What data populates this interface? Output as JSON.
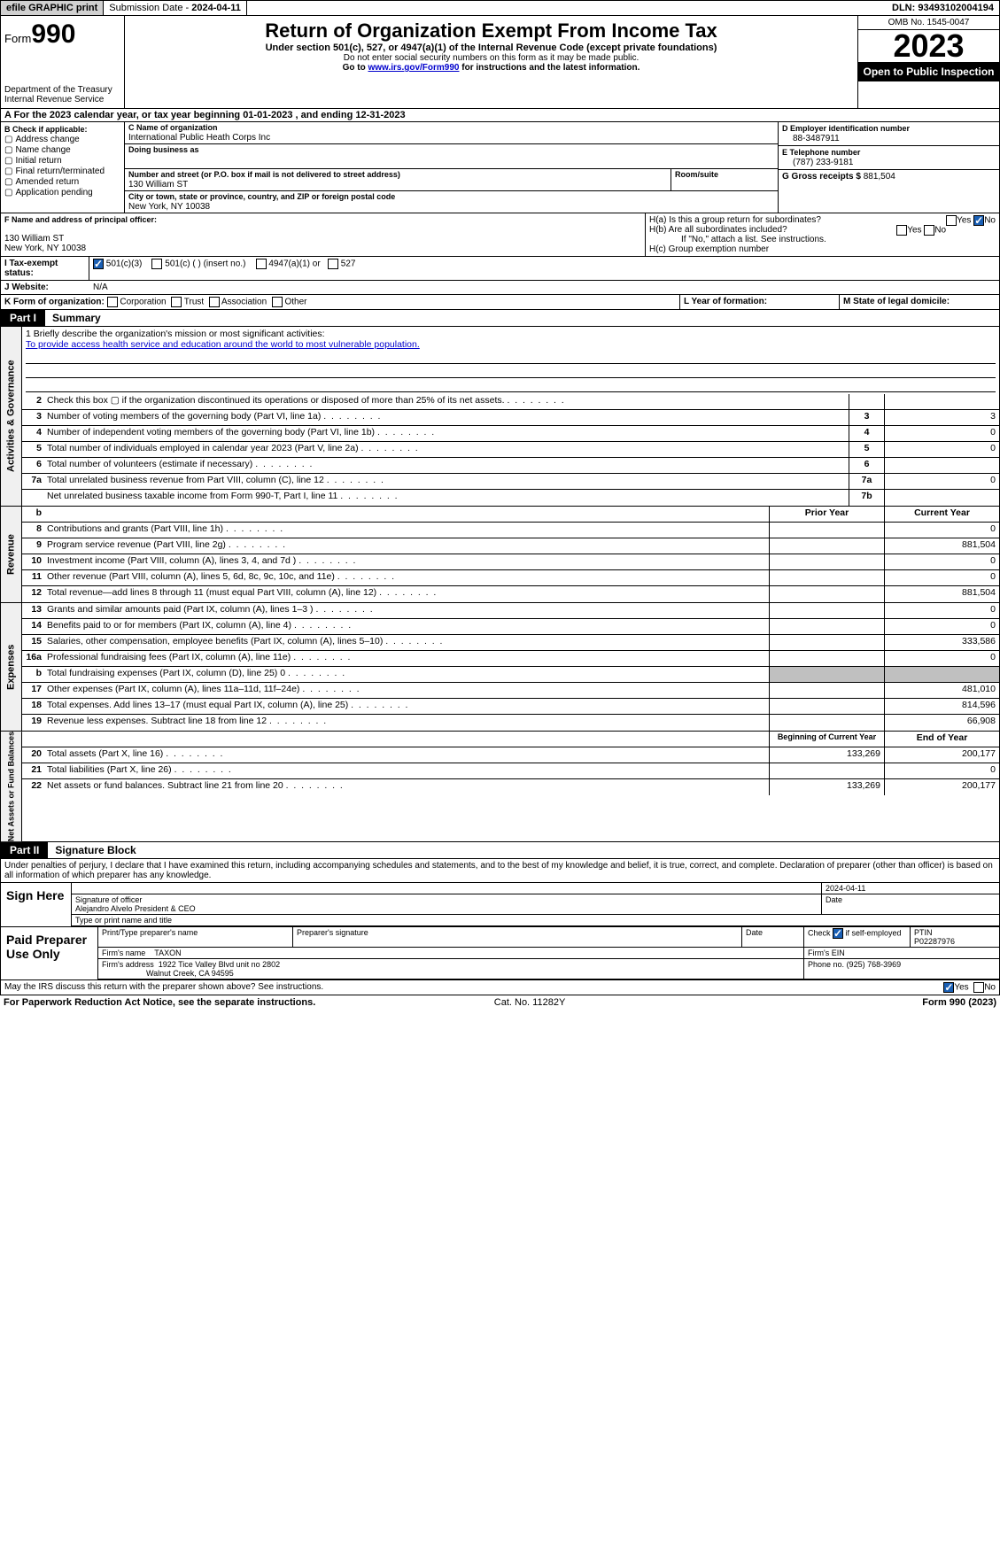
{
  "topbar": {
    "efile": "efile GRAPHIC print",
    "sub_label": "Submission Date - ",
    "sub_date": "2024-04-11",
    "dln_label": "DLN: ",
    "dln": "93493102004194"
  },
  "header": {
    "form_prefix": "Form",
    "form_no": "990",
    "dept": "Department of the Treasury",
    "irs": "Internal Revenue Service",
    "title": "Return of Organization Exempt From Income Tax",
    "sub1": "Under section 501(c), 527, or 4947(a)(1) of the Internal Revenue Code (except private foundations)",
    "sub2": "Do not enter social security numbers on this form as it may be made public.",
    "sub3_pre": "Go to ",
    "sub3_link": "www.irs.gov/Form990",
    "sub3_post": " for instructions and the latest information.",
    "omb": "OMB No. 1545-0047",
    "year": "2023",
    "open": "Open to Public Inspection"
  },
  "sectionA": {
    "text": "A For the 2023 calendar year, or tax year beginning 01-01-2023    , and ending 12-31-2023"
  },
  "colB": {
    "label": "B Check if applicable:",
    "items": [
      "Address change",
      "Name change",
      "Initial return",
      "Final return/terminated",
      "Amended return",
      "Application pending"
    ]
  },
  "colC": {
    "name_label": "C Name of organization",
    "name": "International Public Heath Corps Inc",
    "dba_label": "Doing business as",
    "addr_label": "Number and street (or P.O. box if mail is not delivered to street address)",
    "room_label": "Room/suite",
    "addr": "130 William ST",
    "city_label": "City or town, state or province, country, and ZIP or foreign postal code",
    "city": "New York, NY  10038"
  },
  "colD": {
    "ein_label": "D Employer identification number",
    "ein": "88-3487911",
    "tel_label": "E Telephone number",
    "tel": "(787) 233-9181",
    "gross_label": "G Gross receipts $ ",
    "gross": "881,504"
  },
  "rowF": {
    "label": "F  Name and address of principal officer:",
    "addr1": "130 William ST",
    "addr2": "New York, NY  10038"
  },
  "rowH": {
    "ha_label": "H(a)  Is this a group return for subordinates?",
    "hb_label": "H(b)  Are all subordinates included?",
    "hb_note": "If \"No,\" attach a list. See instructions.",
    "hc_label": "H(c)  Group exemption number",
    "yes": "Yes",
    "no": "No"
  },
  "rowI": {
    "label": "I   Tax-exempt status:",
    "opts": [
      "501(c)(3)",
      "501(c) (  ) (insert no.)",
      "4947(a)(1) or",
      "527"
    ]
  },
  "rowJ": {
    "label": "J   Website:",
    "val": "N/A"
  },
  "rowK": {
    "label": "K Form of organization:",
    "opts": [
      "Corporation",
      "Trust",
      "Association",
      "Other"
    ],
    "l_label": "L Year of formation:",
    "m_label": "M State of legal domicile:"
  },
  "part1": {
    "tag": "Part I",
    "title": "Summary"
  },
  "mission": {
    "q": "1  Briefly describe the organization's mission or most significant activities:",
    "text": "To provide access health service and education around the world to most vulnerable population."
  },
  "gov_label": "Activities & Governance",
  "gov_rows": [
    {
      "n": "2",
      "d": "Check this box ▢  if the organization discontinued its operations or disposed of more than 25% of its net assets.",
      "c1": "",
      "c2": ""
    },
    {
      "n": "3",
      "d": "Number of voting members of the governing body (Part VI, line 1a)",
      "c1": "3",
      "c2": "3"
    },
    {
      "n": "4",
      "d": "Number of independent voting members of the governing body (Part VI, line 1b)",
      "c1": "4",
      "c2": "0"
    },
    {
      "n": "5",
      "d": "Total number of individuals employed in calendar year 2023 (Part V, line 2a)",
      "c1": "5",
      "c2": "0"
    },
    {
      "n": "6",
      "d": "Total number of volunteers (estimate if necessary)",
      "c1": "6",
      "c2": ""
    },
    {
      "n": "7a",
      "d": "Total unrelated business revenue from Part VIII, column (C), line 12",
      "c1": "7a",
      "c2": "0"
    },
    {
      "n": "",
      "d": "Net unrelated business taxable income from Form 990-T, Part I, line 11",
      "c1": "7b",
      "c2": ""
    }
  ],
  "rev_label": "Revenue",
  "rev_head": {
    "c2": "Prior Year",
    "c3": "Current Year"
  },
  "rev_rows": [
    {
      "n": "8",
      "d": "Contributions and grants (Part VIII, line 1h)",
      "c2": "",
      "c3": "0"
    },
    {
      "n": "9",
      "d": "Program service revenue (Part VIII, line 2g)",
      "c2": "",
      "c3": "881,504"
    },
    {
      "n": "10",
      "d": "Investment income (Part VIII, column (A), lines 3, 4, and 7d )",
      "c2": "",
      "c3": "0"
    },
    {
      "n": "11",
      "d": "Other revenue (Part VIII, column (A), lines 5, 6d, 8c, 9c, 10c, and 11e)",
      "c2": "",
      "c3": "0"
    },
    {
      "n": "12",
      "d": "Total revenue—add lines 8 through 11 (must equal Part VIII, column (A), line 12)",
      "c2": "",
      "c3": "881,504"
    }
  ],
  "exp_label": "Expenses",
  "exp_rows": [
    {
      "n": "13",
      "d": "Grants and similar amounts paid (Part IX, column (A), lines 1–3 )",
      "c2": "",
      "c3": "0"
    },
    {
      "n": "14",
      "d": "Benefits paid to or for members (Part IX, column (A), line 4)",
      "c2": "",
      "c3": "0"
    },
    {
      "n": "15",
      "d": "Salaries, other compensation, employee benefits (Part IX, column (A), lines 5–10)",
      "c2": "",
      "c3": "333,586"
    },
    {
      "n": "16a",
      "d": "Professional fundraising fees (Part IX, column (A), line 11e)",
      "c2": "",
      "c3": "0"
    },
    {
      "n": "b",
      "d": "Total fundraising expenses (Part IX, column (D), line 25) 0",
      "c2": "shaded",
      "c3": "shaded"
    },
    {
      "n": "17",
      "d": "Other expenses (Part IX, column (A), lines 11a–11d, 11f–24e)",
      "c2": "",
      "c3": "481,010"
    },
    {
      "n": "18",
      "d": "Total expenses. Add lines 13–17 (must equal Part IX, column (A), line 25)",
      "c2": "",
      "c3": "814,596"
    },
    {
      "n": "19",
      "d": "Revenue less expenses. Subtract line 18 from line 12",
      "c2": "",
      "c3": "66,908"
    }
  ],
  "na_label": "Net Assets or Fund Balances",
  "na_head": {
    "c2": "Beginning of Current Year",
    "c3": "End of Year"
  },
  "na_rows": [
    {
      "n": "20",
      "d": "Total assets (Part X, line 16)",
      "c2": "133,269",
      "c3": "200,177"
    },
    {
      "n": "21",
      "d": "Total liabilities (Part X, line 26)",
      "c2": "",
      "c3": "0"
    },
    {
      "n": "22",
      "d": "Net assets or fund balances. Subtract line 21 from line 20",
      "c2": "133,269",
      "c3": "200,177"
    }
  ],
  "part2": {
    "tag": "Part II",
    "title": "Signature Block"
  },
  "sig": {
    "decl": "Under penalties of perjury, I declare that I have examined this return, including accompanying schedules and statements, and to the best of my knowledge and belief, it is true, correct, and complete. Declaration of preparer (other than officer) is based on all information of which preparer has any knowledge.",
    "sign_here": "Sign Here",
    "sig_label": "Signature of officer",
    "date_label": "Date",
    "sig_date": "2024-04-11",
    "officer": "Alejandro Alvelo  President & CEO",
    "type_label": "Type or print name and title",
    "paid": "Paid Preparer Use Only",
    "prep_name_label": "Print/Type preparer's name",
    "prep_sig_label": "Preparer's signature",
    "prep_date_label": "Date",
    "self_emp": "Check         if self-employed",
    "ptin_label": "PTIN",
    "ptin": "P02287976",
    "firm_name_label": "Firm's name",
    "firm_name": "TAXON",
    "firm_ein_label": "Firm's EIN",
    "firm_addr_label": "Firm's address",
    "firm_addr": "1922 Tice Valley Blvd unit no 2802",
    "firm_city": "Walnut Creek, CA  94595",
    "phone_label": "Phone no.",
    "phone": "(925) 768-3969"
  },
  "discuss": {
    "text": "May the IRS discuss this return with the preparer shown above? See instructions.",
    "yes": "Yes",
    "no": "No"
  },
  "footer": {
    "left": "For Paperwork Reduction Act Notice, see the separate instructions.",
    "mid": "Cat. No. 11282Y",
    "right": "Form 990 (2023)"
  }
}
